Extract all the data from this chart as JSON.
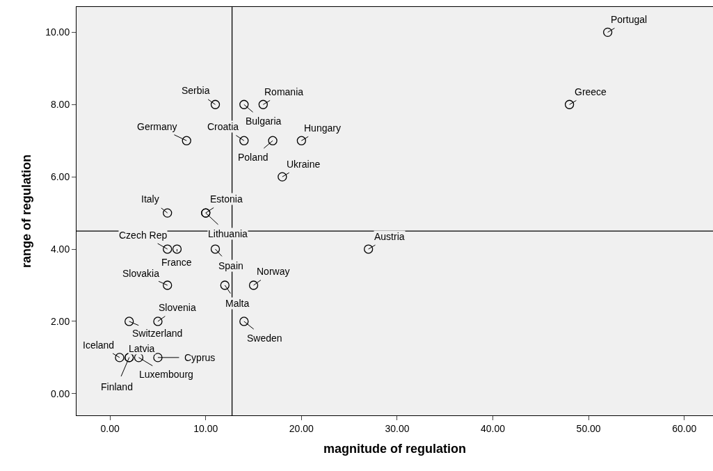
{
  "chart_data": {
    "type": "scatter",
    "xlabel": "magnitude of regulation",
    "ylabel": "range of regulation",
    "x": [
      52,
      48,
      27,
      18,
      20,
      16,
      14,
      11,
      8,
      14,
      17,
      6,
      10,
      10,
      6,
      7,
      11,
      6,
      12,
      15,
      5,
      2,
      14,
      1,
      2,
      2,
      3,
      5
    ],
    "series": [
      {
        "color": "#000000",
        "values": [
          10,
          8,
          4,
          6,
          7,
          8,
          8,
          8,
          7,
          7,
          7,
          5,
          5,
          5,
          4,
          4,
          4,
          3,
          3,
          3,
          2,
          2,
          2,
          1,
          1,
          1,
          1,
          1
        ]
      }
    ],
    "marker": "circle",
    "grid": false,
    "legend": false,
    "xlim": [
      -3.5,
      63
    ],
    "xticks": [
      {
        "value": 0,
        "label": "0.00"
      },
      {
        "value": 10,
        "label": "10.00"
      },
      {
        "value": 20,
        "label": "20.00"
      },
      {
        "value": 30,
        "label": "30.00"
      },
      {
        "value": 40,
        "label": "40.00"
      },
      {
        "value": 50,
        "label": "50.00"
      },
      {
        "value": 60,
        "label": "60.00"
      }
    ],
    "ylim": [
      -0.6,
      10.7
    ],
    "yticks": [
      {
        "value": 0,
        "label": "0.00"
      },
      {
        "value": 2,
        "label": "2.00"
      },
      {
        "value": 4,
        "label": "4.00"
      },
      {
        "value": 6,
        "label": "6.00"
      },
      {
        "value": 8,
        "label": "8.00"
      },
      {
        "value": 10,
        "label": "10.00"
      }
    ],
    "ref_lines": [
      {
        "axis": "x",
        "value": 12.75,
        "color": "#000000"
      },
      {
        "axis": "y",
        "value": 4.5,
        "color": "#000000"
      }
    ],
    "annotations": [
      {
        "text": "Portugal",
        "x": 52,
        "y": 10
      },
      {
        "text": "Greece",
        "x": 48,
        "y": 8
      },
      {
        "text": "Austria",
        "x": 27,
        "y": 4
      },
      {
        "text": "Ukraine",
        "x": 18,
        "y": 6
      },
      {
        "text": "Hungary",
        "x": 20,
        "y": 7
      },
      {
        "text": "Romania",
        "x": 16,
        "y": 8
      },
      {
        "text": "Bulgaria",
        "x": 14,
        "y": 8
      },
      {
        "text": "Serbia",
        "x": 11,
        "y": 8
      },
      {
        "text": "Germany",
        "x": 8,
        "y": 7
      },
      {
        "text": "Croatia",
        "x": 14,
        "y": 7
      },
      {
        "text": "Poland",
        "x": 17,
        "y": 7
      },
      {
        "text": "Italy",
        "x": 6,
        "y": 5
      },
      {
        "text": "Estonia",
        "x": 10,
        "y": 5
      },
      {
        "text": "Lithuania",
        "x": 10,
        "y": 5
      },
      {
        "text": "Czech Rep",
        "x": 6,
        "y": 4
      },
      {
        "text": "France",
        "x": 7,
        "y": 4
      },
      {
        "text": "Spain",
        "x": 11,
        "y": 4
      },
      {
        "text": "Slovakia",
        "x": 6,
        "y": 3
      },
      {
        "text": "Malta",
        "x": 12,
        "y": 3
      },
      {
        "text": "Norway",
        "x": 15,
        "y": 3
      },
      {
        "text": "Slovenia",
        "x": 5,
        "y": 2
      },
      {
        "text": "Switzerland",
        "x": 2,
        "y": 2
      },
      {
        "text": "Sweden",
        "x": 14,
        "y": 2
      },
      {
        "text": "Iceland",
        "x": 1,
        "y": 1
      },
      {
        "text": "Latvia",
        "x": 2,
        "y": 1
      },
      {
        "text": "Finland",
        "x": 2,
        "y": 1
      },
      {
        "text": "Luxembourg",
        "x": 3,
        "y": 1
      },
      {
        "text": "Cyprus",
        "x": 5,
        "y": 1
      }
    ]
  }
}
